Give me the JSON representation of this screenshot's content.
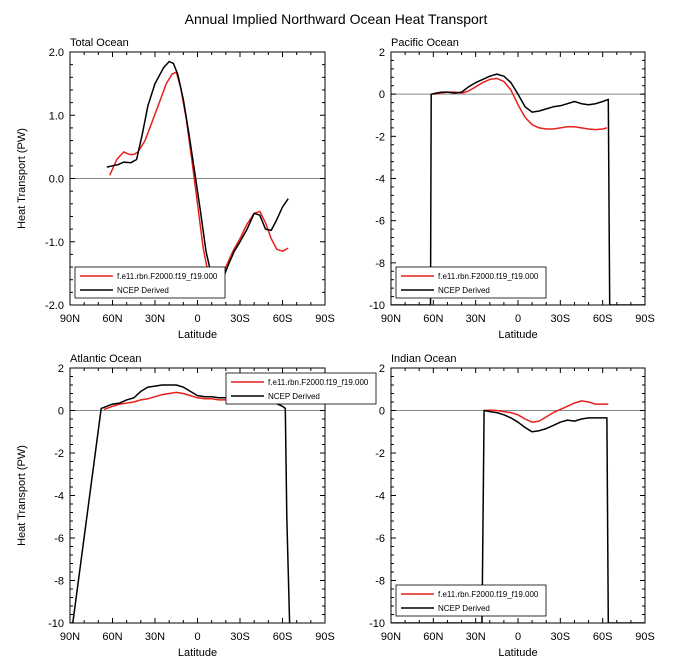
{
  "figure_title": "Annual Implied Northward Ocean Heat Transport",
  "chart_data": [
    {
      "type": "line",
      "title": "Total Ocean",
      "xlabel": "Latitude",
      "ylabel": "Heat Transport (PW)",
      "xlim": [
        90,
        -90
      ],
      "ylim": [
        -2.0,
        2.0
      ],
      "x_ticks": [
        90,
        60,
        30,
        0,
        -30,
        -60,
        -90
      ],
      "x_tick_labels": [
        "90N",
        "60N",
        "30N",
        "0",
        "30S",
        "60S",
        "90S"
      ],
      "y_ticks": [
        -2.0,
        -1.0,
        0.0,
        1.0,
        2.0
      ],
      "y_tick_labels": [
        "-2.0",
        "-1.0",
        "0.0",
        "1.0",
        "2.0"
      ],
      "zero_line": true,
      "legend": {
        "position": "bottom-left",
        "entries": [
          "f.e11.rbn.F2000.f19_f19.000",
          "NCEP Derived"
        ]
      },
      "series": [
        {
          "name": "f.e11.rbn.F2000.f19_f19.000",
          "color": "#e8201c",
          "x": [
            62,
            57,
            52,
            48,
            45,
            42,
            37,
            32,
            27,
            22,
            18,
            15,
            12,
            8,
            4,
            0,
            -4,
            -8,
            -12,
            -16,
            -20,
            -25,
            -30,
            -35,
            -40,
            -44,
            -48,
            -52,
            -56,
            -60,
            -64
          ],
          "y": [
            0.05,
            0.3,
            0.42,
            0.38,
            0.38,
            0.42,
            0.6,
            0.9,
            1.2,
            1.5,
            1.65,
            1.68,
            1.45,
            0.95,
            0.3,
            -0.4,
            -1.1,
            -1.55,
            -1.68,
            -1.6,
            -1.4,
            -1.15,
            -0.95,
            -0.72,
            -0.55,
            -0.52,
            -0.7,
            -0.95,
            -1.12,
            -1.15,
            -1.1
          ]
        },
        {
          "name": "NCEP Derived",
          "color": "#000000",
          "x": [
            64,
            60,
            56,
            52,
            47,
            43,
            39,
            35,
            30,
            24,
            20,
            17,
            14,
            10,
            6,
            2,
            -2,
            -6,
            -10,
            -14,
            -18,
            -22,
            -26,
            -30,
            -35,
            -40,
            -44,
            -48,
            -52,
            -56,
            -60,
            -64
          ],
          "y": [
            0.18,
            0.2,
            0.22,
            0.26,
            0.25,
            0.3,
            0.7,
            1.15,
            1.5,
            1.75,
            1.85,
            1.82,
            1.65,
            1.25,
            0.7,
            0.1,
            -0.5,
            -1.15,
            -1.55,
            -1.65,
            -1.58,
            -1.35,
            -1.15,
            -1.0,
            -0.8,
            -0.55,
            -0.58,
            -0.8,
            -0.82,
            -0.65,
            -0.45,
            -0.32
          ]
        }
      ]
    },
    {
      "type": "line",
      "title": "Pacific Ocean",
      "xlabel": "Latitude",
      "ylabel": "",
      "xlim": [
        90,
        -90
      ],
      "ylim": [
        -10,
        2
      ],
      "x_ticks": [
        90,
        60,
        30,
        0,
        -30,
        -60,
        -90
      ],
      "x_tick_labels": [
        "90N",
        "60N",
        "30N",
        "0",
        "30S",
        "60S",
        "90S"
      ],
      "y_ticks": [
        -10,
        -8,
        -6,
        -4,
        -2,
        0,
        2
      ],
      "y_tick_labels": [
        "-10",
        "-8",
        "-6",
        "-4",
        "-2",
        "0",
        "2"
      ],
      "zero_line": true,
      "legend": {
        "position": "bottom-left",
        "entries": [
          "f.e11.rbn.F2000.f19_f19.000",
          "NCEP Derived"
        ]
      },
      "series": [
        {
          "name": "f.e11.rbn.F2000.f19_f19.000",
          "color": "#e8201c",
          "x": [
            60,
            55,
            50,
            45,
            40,
            35,
            30,
            25,
            20,
            15,
            10,
            5,
            0,
            -5,
            -10,
            -15,
            -20,
            -25,
            -30,
            -35,
            -40,
            -45,
            -50,
            -55,
            -60,
            -63
          ],
          "y": [
            0.0,
            0.05,
            0.1,
            0.1,
            0.05,
            0.15,
            0.35,
            0.55,
            0.7,
            0.75,
            0.6,
            0.2,
            -0.5,
            -1.1,
            -1.45,
            -1.6,
            -1.65,
            -1.65,
            -1.6,
            -1.55,
            -1.55,
            -1.6,
            -1.65,
            -1.68,
            -1.65,
            -1.6
          ]
        },
        {
          "name": "NCEP Derived",
          "color": "#000000",
          "x": [
            90,
            62,
            61.5,
            58,
            54,
            50,
            45,
            40,
            35,
            30,
            25,
            20,
            15,
            10,
            5,
            0,
            -5,
            -10,
            -15,
            -20,
            -25,
            -30,
            -35,
            -40,
            -45,
            -50,
            -55,
            -60,
            -64,
            -65,
            -90
          ],
          "y": [
            -10,
            -10,
            0.0,
            0.05,
            0.1,
            0.1,
            0.05,
            0.1,
            0.35,
            0.55,
            0.7,
            0.85,
            0.95,
            0.85,
            0.55,
            0.0,
            -0.6,
            -0.85,
            -0.8,
            -0.7,
            -0.6,
            -0.55,
            -0.45,
            -0.35,
            -0.45,
            -0.5,
            -0.45,
            -0.35,
            -0.25,
            -10,
            -10
          ]
        }
      ]
    },
    {
      "type": "line",
      "title": "Atlantic Ocean",
      "xlabel": "Latitude",
      "ylabel": "Heat Transport (PW)",
      "xlim": [
        90,
        -90
      ],
      "ylim": [
        -10,
        2
      ],
      "x_ticks": [
        90,
        60,
        30,
        0,
        -30,
        -60,
        -90
      ],
      "x_tick_labels": [
        "90N",
        "60N",
        "30N",
        "0",
        "30S",
        "60S",
        "90S"
      ],
      "y_ticks": [
        -10,
        -8,
        -6,
        -4,
        -2,
        0,
        2
      ],
      "y_tick_labels": [
        "-10",
        "-8",
        "-6",
        "-4",
        "-2",
        "0",
        "2"
      ],
      "zero_line": true,
      "legend": {
        "position": "top-right",
        "entries": [
          "f.e11.rbn.F2000.f19_f19.000",
          "NCEP Derived"
        ]
      },
      "series": [
        {
          "name": "f.e11.rbn.F2000.f19_f19.000",
          "color": "#e8201c",
          "x": [
            66,
            60,
            55,
            50,
            45,
            40,
            35,
            30,
            25,
            20,
            15,
            10,
            5,
            0,
            -5,
            -10,
            -15,
            -20,
            -25,
            -30,
            -35,
            -40,
            -45,
            -50,
            -55
          ],
          "y": [
            0.05,
            0.2,
            0.3,
            0.35,
            0.4,
            0.5,
            0.55,
            0.65,
            0.75,
            0.8,
            0.85,
            0.8,
            0.7,
            0.6,
            0.55,
            0.55,
            0.5,
            0.5,
            0.5,
            0.55,
            0.55,
            0.6,
            0.6,
            0.6,
            0.55
          ]
        },
        {
          "name": "NCEP Derived",
          "color": "#000000",
          "x": [
            90,
            88,
            68,
            64,
            60,
            55,
            50,
            45,
            40,
            35,
            30,
            25,
            20,
            15,
            10,
            5,
            0,
            -5,
            -10,
            -15,
            -20,
            -25,
            -30,
            -35,
            -40,
            -45,
            -50,
            -55,
            -60,
            -62,
            -63,
            -65
          ],
          "y": [
            -10,
            -10,
            0.1,
            0.2,
            0.3,
            0.35,
            0.5,
            0.6,
            0.9,
            1.1,
            1.15,
            1.2,
            1.2,
            1.2,
            1.1,
            0.9,
            0.7,
            0.65,
            0.65,
            0.6,
            0.6,
            0.6,
            0.65,
            0.7,
            0.7,
            0.6,
            0.55,
            0.35,
            0.2,
            0.1,
            -5,
            -10
          ]
        }
      ]
    },
    {
      "type": "line",
      "title": "Indian Ocean",
      "xlabel": "Latitude",
      "ylabel": "",
      "xlim": [
        90,
        -90
      ],
      "ylim": [
        -10,
        2
      ],
      "x_ticks": [
        90,
        60,
        30,
        0,
        -30,
        -60,
        -90
      ],
      "x_tick_labels": [
        "90N",
        "60N",
        "30N",
        "0",
        "30S",
        "60S",
        "90S"
      ],
      "y_ticks": [
        -10,
        -8,
        -6,
        -4,
        -2,
        0,
        2
      ],
      "y_tick_labels": [
        "-10",
        "-8",
        "-6",
        "-4",
        "-2",
        "0",
        "2"
      ],
      "zero_line": true,
      "legend": {
        "position": "bottom-left",
        "entries": [
          "f.e11.rbn.F2000.f19_f19.000",
          "NCEP Derived"
        ]
      },
      "series": [
        {
          "name": "f.e11.rbn.F2000.f19_f19.000",
          "color": "#e8201c",
          "x": [
            24,
            20,
            15,
            10,
            5,
            0,
            -5,
            -10,
            -15,
            -20,
            -25,
            -30,
            -35,
            -40,
            -45,
            -50,
            -55,
            -60,
            -64
          ],
          "y": [
            0.0,
            0.02,
            0.0,
            -0.05,
            -0.1,
            -0.2,
            -0.4,
            -0.55,
            -0.5,
            -0.3,
            -0.1,
            0.05,
            0.2,
            0.35,
            0.45,
            0.4,
            0.3,
            0.3,
            0.3
          ]
        },
        {
          "name": "NCEP Derived",
          "color": "#000000",
          "x": [
            90,
            25.5,
            24,
            20,
            15,
            10,
            5,
            0,
            -5,
            -10,
            -15,
            -20,
            -25,
            -30,
            -35,
            -40,
            -45,
            -50,
            -55,
            -60,
            -63,
            -64,
            -90
          ],
          "y": [
            -10,
            -10,
            0.0,
            -0.05,
            -0.1,
            -0.2,
            -0.35,
            -0.55,
            -0.8,
            -1.0,
            -0.95,
            -0.85,
            -0.7,
            -0.55,
            -0.45,
            -0.5,
            -0.4,
            -0.35,
            -0.35,
            -0.35,
            -0.35,
            -10,
            -10
          ]
        }
      ]
    }
  ]
}
